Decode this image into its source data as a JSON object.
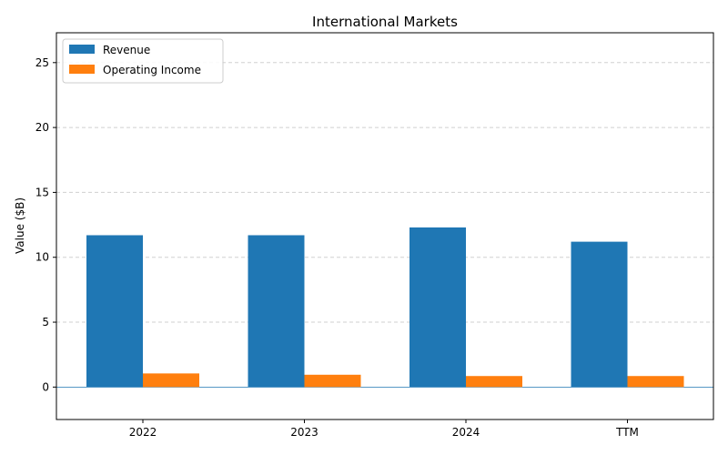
{
  "chart_data": {
    "type": "bar",
    "title": "International Markets",
    "xlabel": "",
    "ylabel": "Value ($B)",
    "categories": [
      "2022",
      "2023",
      "2024",
      "TTM"
    ],
    "series": [
      {
        "name": "Revenue",
        "values": [
          11.7,
          11.7,
          12.3,
          11.2
        ],
        "color": "#1f77b4"
      },
      {
        "name": "Operating Income",
        "values": [
          1.05,
          0.95,
          0.85,
          0.85
        ],
        "color": "#ff7f0e"
      }
    ],
    "ylim": [
      -2.5,
      27.3
    ],
    "yticks": [
      0,
      5,
      10,
      15,
      20,
      25
    ],
    "grid": "y-dashed",
    "legend_position": "top-left",
    "zero_line_color": "#1f77b4"
  }
}
